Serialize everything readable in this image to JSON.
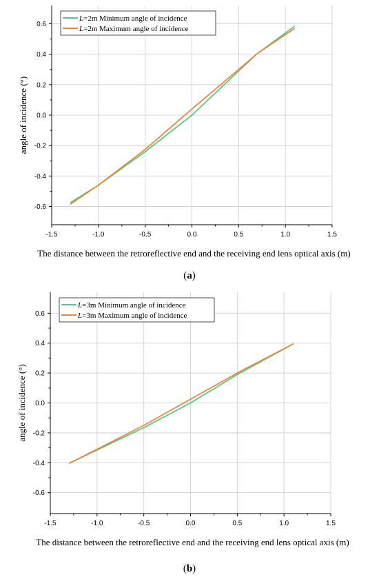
{
  "chart_data": [
    {
      "panel": "a",
      "type": "line",
      "caption_letter": "a",
      "xlabel": "The distance between the retroreflective end and the receiving end lens optical axis (m)",
      "ylabel": "angle of incidence (°)",
      "xlim": [
        -1.5,
        1.5
      ],
      "ylim": [
        -0.72,
        0.72
      ],
      "xticks": [
        "-1.5",
        "-1.0",
        "-0.5",
        "0.0",
        "0.5",
        "1.0",
        "1.5"
      ],
      "yticks": [
        "-0.6",
        "-0.4",
        "-0.2",
        "0.0",
        "0.2",
        "0.4",
        "0.6"
      ],
      "grid": true,
      "legend_position": "top-left",
      "series": [
        {
          "name_italic": "L",
          "name_rest": "=2m Minimum angle of incidence",
          "color": "#5cc48a",
          "x": [
            -1.3,
            -1.0,
            -0.5,
            0.0,
            0.5,
            0.7,
            1.1
          ],
          "y": [
            -0.575,
            -0.46,
            -0.24,
            0.0,
            0.29,
            0.405,
            0.585
          ]
        },
        {
          "name_italic": "L",
          "name_rest": "=2m Maximum angle of incidence",
          "color": "#e8883a",
          "x": [
            -1.3,
            -1.0,
            -0.5,
            0.0,
            0.5,
            0.7,
            1.1
          ],
          "y": [
            -0.585,
            -0.46,
            -0.225,
            0.04,
            0.3,
            0.405,
            0.57
          ]
        }
      ]
    },
    {
      "panel": "b",
      "type": "line",
      "caption_letter": "b",
      "xlabel": "The distance between the retroreflective end and the receiving end lens optical axis (m)",
      "ylabel": "angle of incidence (°)",
      "xlim": [
        -1.5,
        1.5
      ],
      "ylim": [
        -0.74,
        0.74
      ],
      "xticks": [
        "-1.5",
        "-1.0",
        "-0.5",
        "0.0",
        "0.5",
        "1.0",
        "1.5"
      ],
      "yticks": [
        "-0.6",
        "-0.4",
        "-0.2",
        "0.0",
        "0.2",
        "0.4",
        "0.6"
      ],
      "grid": true,
      "legend_position": "top-left",
      "series": [
        {
          "name_italic": "L",
          "name_rest": "=3m Minimum angle of incidence",
          "color": "#5cc48a",
          "x": [
            -1.3,
            -1.0,
            -0.5,
            0.0,
            0.5,
            1.1
          ],
          "y": [
            -0.405,
            -0.315,
            -0.165,
            0.0,
            0.19,
            0.395
          ]
        },
        {
          "name_italic": "L",
          "name_rest": "=3m Maximum angle of incidence",
          "color": "#e8883a",
          "x": [
            -1.3,
            -1.0,
            -0.5,
            0.0,
            0.5,
            1.1
          ],
          "y": [
            -0.405,
            -0.31,
            -0.15,
            0.025,
            0.2,
            0.395
          ]
        }
      ]
    }
  ]
}
